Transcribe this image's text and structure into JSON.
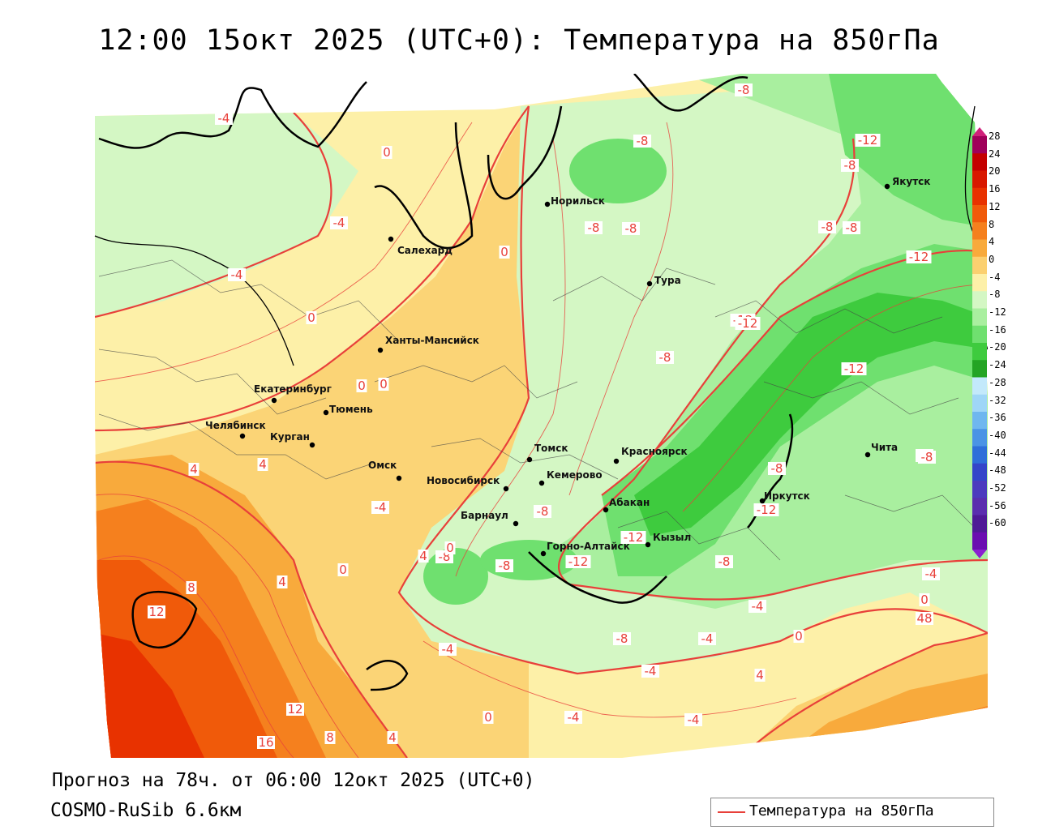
{
  "title": "12:00 15окт 2025 (UTC+0): Температура на 850гПа",
  "footer": {
    "forecast": "Прогноз на 78ч. от 06:00 12окт 2025 (UTC+0)",
    "model": "COSMO-RuSib 6.6км"
  },
  "legend": {
    "label": "Температура на 850гПа",
    "line_color": "#e8403a"
  },
  "colorbar": {
    "labels": [
      "28",
      "24",
      "20",
      "16",
      "12",
      "8",
      "4",
      "0",
      "-4",
      "-8",
      "-12",
      "-16",
      "-20",
      "-24",
      "-28",
      "-32",
      "-36",
      "-40",
      "-44",
      "-48",
      "-52",
      "-56",
      "-60"
    ],
    "colors": [
      "#a0005a",
      "#c40000",
      "#d81800",
      "#e83200",
      "#f05a0a",
      "#f5801e",
      "#f8aa3c",
      "#fbd070",
      "#fdf0a8",
      "#d4f7c4",
      "#a9ef9f",
      "#6fe06f",
      "#3ecb3e",
      "#24a424",
      "#c3e9fb",
      "#9fd6f7",
      "#6fb7ef",
      "#4a94e5",
      "#2e6fd9",
      "#3346c9",
      "#4c3bbe",
      "#5a2fae",
      "#4e1b96",
      "#6a0fb0"
    ]
  },
  "cities": [
    {
      "name": "Салехард"
    },
    {
      "name": "Норильск"
    },
    {
      "name": "Якутск"
    },
    {
      "name": "Тура"
    },
    {
      "name": "Ханты-Мансийск"
    },
    {
      "name": "Екатеринбург"
    },
    {
      "name": "Тюмень"
    },
    {
      "name": "Челябинск"
    },
    {
      "name": "Курган"
    },
    {
      "name": "Омск"
    },
    {
      "name": "Новосибирск"
    },
    {
      "name": "Томск"
    },
    {
      "name": "Кемерово"
    },
    {
      "name": "Красноярск"
    },
    {
      "name": "Барнаул"
    },
    {
      "name": "Абакан"
    },
    {
      "name": "Иркутск"
    },
    {
      "name": "Чита"
    },
    {
      "name": "Горно-Алтайск"
    },
    {
      "name": "Кызыл"
    }
  ],
  "contour_labels": [
    "-4",
    "0",
    "-4",
    "-4",
    "0",
    "0",
    "-4",
    "-8",
    "-8",
    "-8",
    "-8",
    "-12",
    "-8",
    "-8",
    "-12",
    "-12",
    "-8",
    "-12",
    "-12",
    "-8",
    "-8",
    "4",
    "4",
    "4",
    "0",
    "-4",
    "-8",
    "-8",
    "-12",
    "-12",
    "-8",
    "-8",
    "-8",
    "-12",
    "-4",
    "0",
    "48",
    "8",
    "12",
    "4",
    "-4",
    "-8",
    "-4",
    "-4",
    "4",
    "0",
    "12",
    "16",
    "8",
    "4",
    "0",
    "-4",
    "0",
    "0",
    "-8",
    "0",
    "-4"
  ]
}
